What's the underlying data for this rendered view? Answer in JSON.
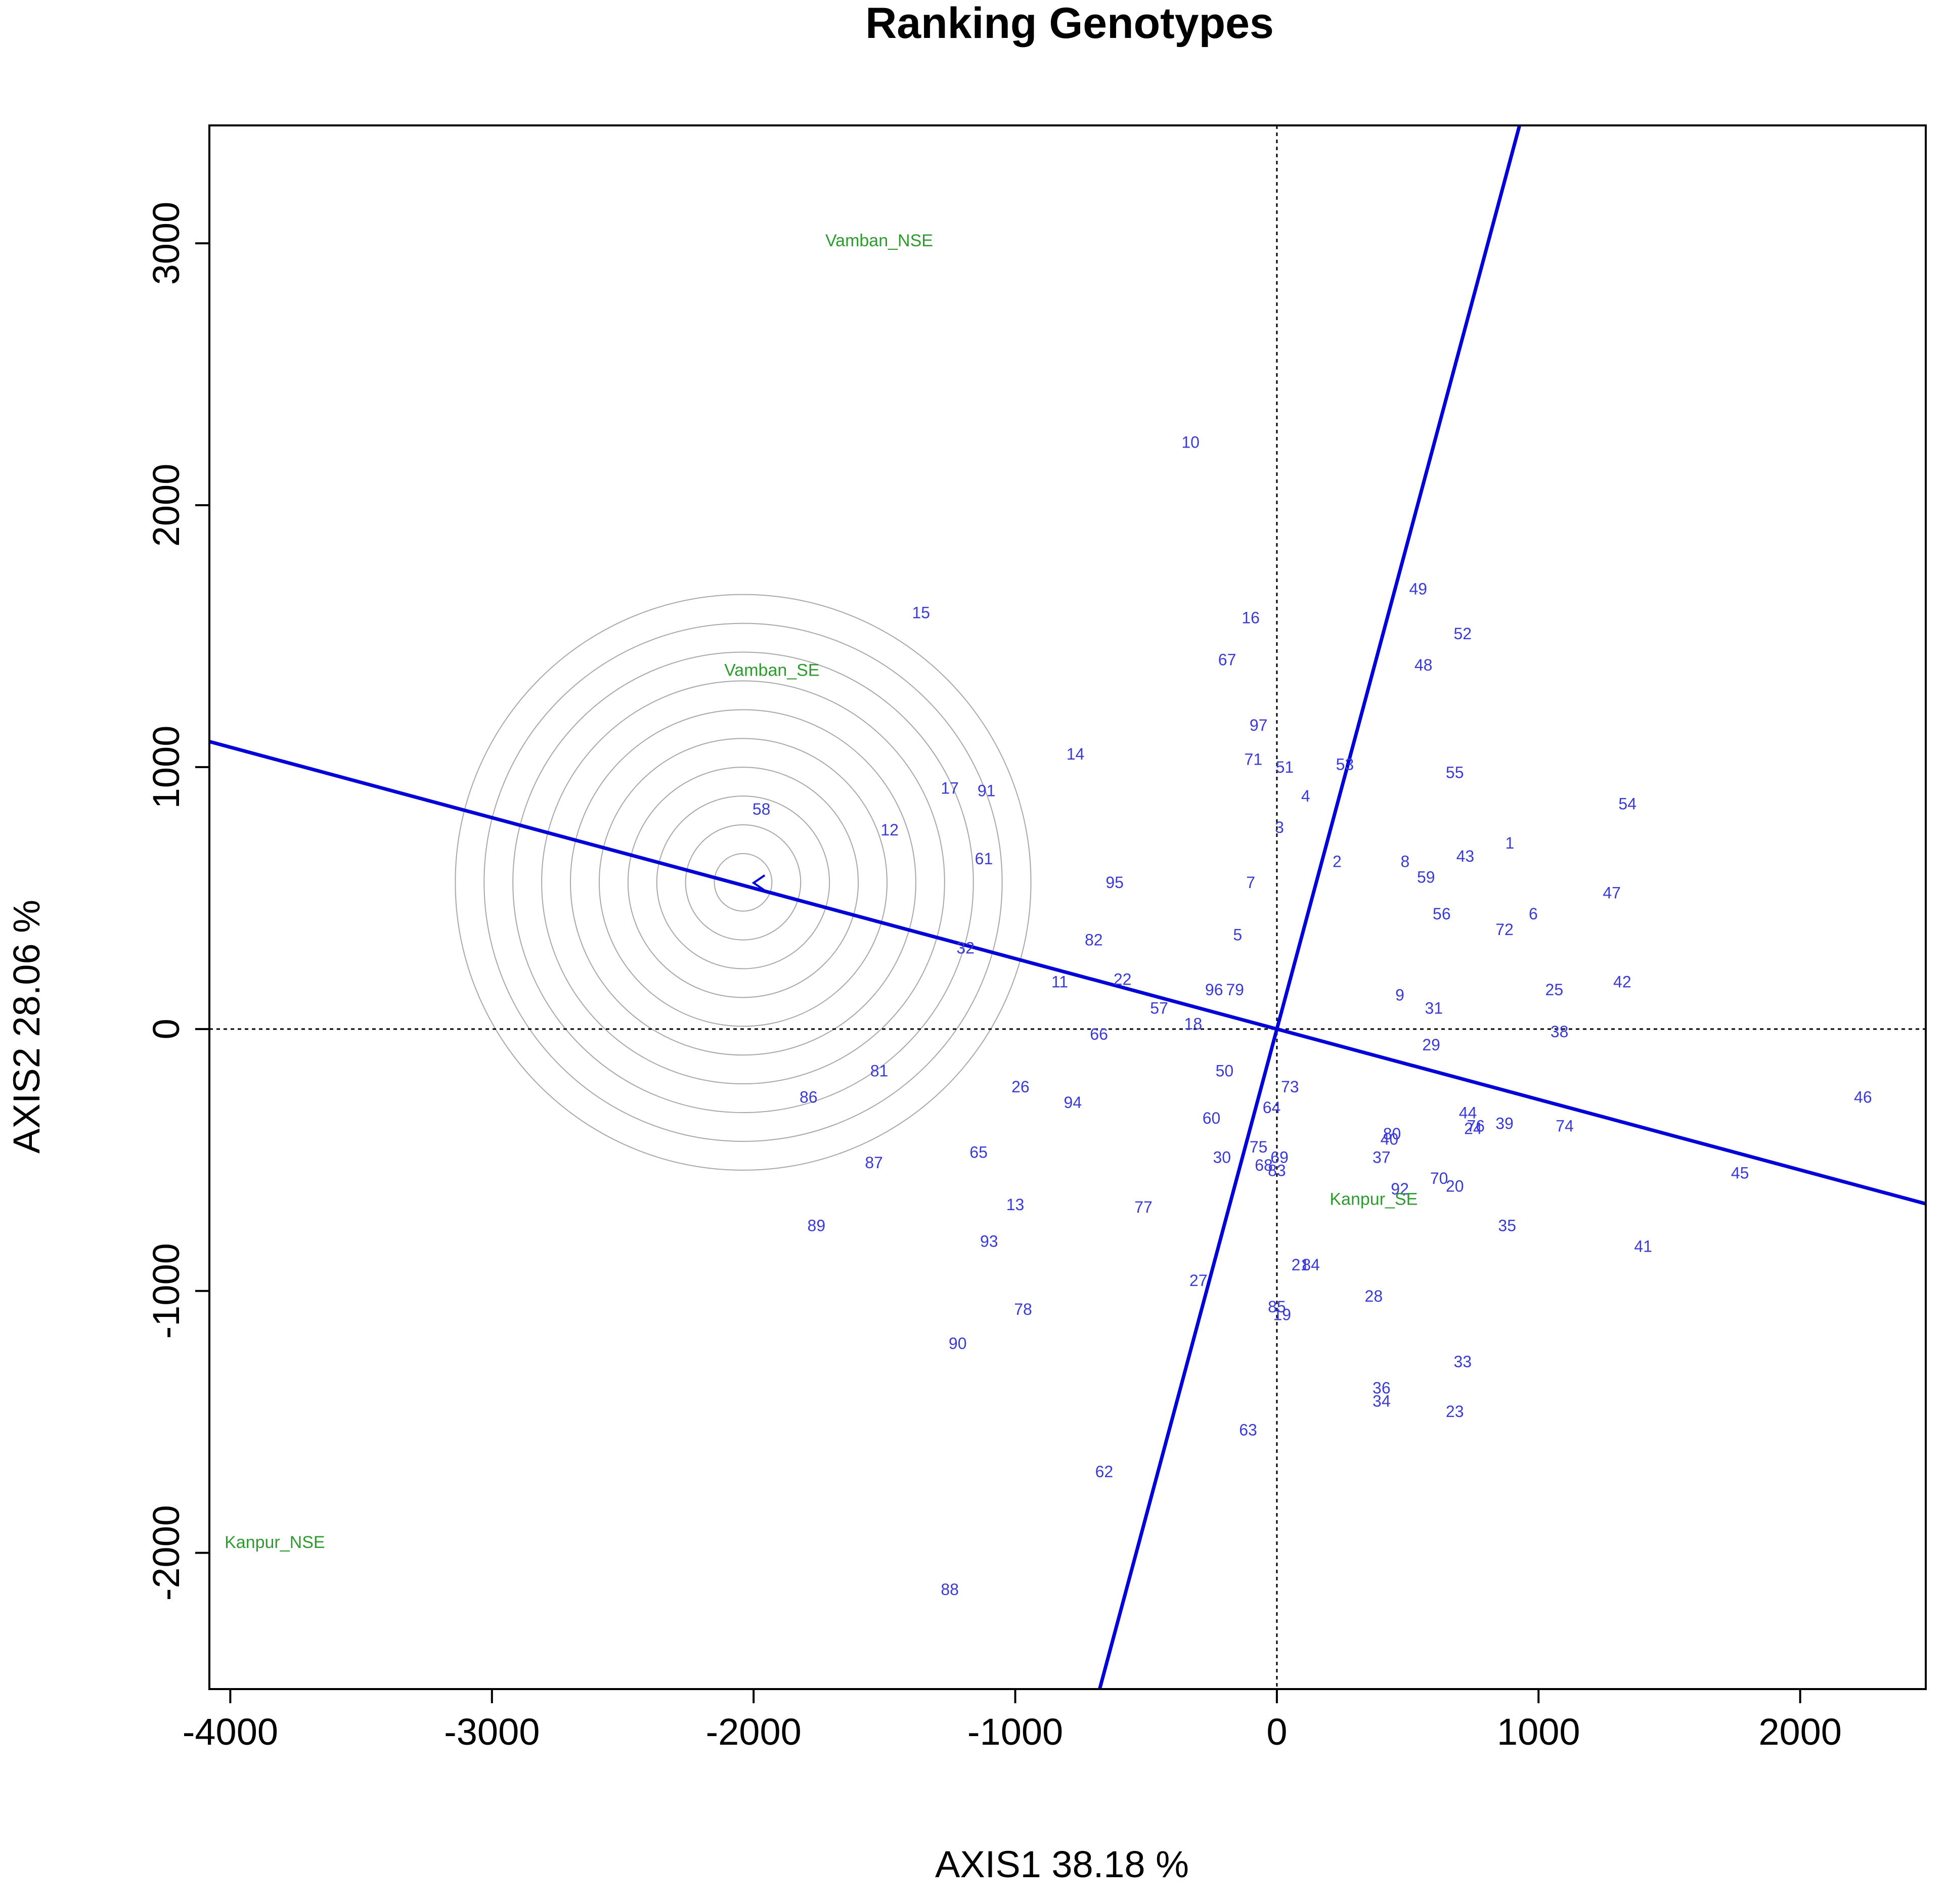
{
  "chart_data": {
    "type": "scatter",
    "title": "Ranking Genotypes",
    "xlabel": "AXIS1 38.18 %",
    "ylabel": "AXIS2 28.06 %",
    "xlim": [
      -4080,
      2480
    ],
    "ylim": [
      -2520,
      3450
    ],
    "x_ticks": [
      -4000,
      -3000,
      -2000,
      -1000,
      0,
      1000,
      2000
    ],
    "y_ticks": [
      -2000,
      -1000,
      0,
      1000,
      2000,
      3000
    ],
    "grid": false,
    "colors": {
      "genotype": "#3a3ad6",
      "environment": "#2e9b2e",
      "axis_line": "#0000d8",
      "circle": "#a8a8a8",
      "frame": "#000000"
    },
    "average_environment_point": {
      "x": -2000,
      "y": 560
    },
    "concentric_circles": {
      "center_x": -2040,
      "center_y": 560,
      "radius_step": 110,
      "count": 10
    },
    "ranking_axis_slope": -0.269,
    "perpendicular_axis_slope": 3.72,
    "environments": [
      {
        "label": "Vamban_NSE",
        "x": -1520,
        "y": 3010
      },
      {
        "label": "Vamban_SE",
        "x": -1930,
        "y": 1370
      },
      {
        "label": "Kanpur_SE",
        "x": 370,
        "y": -650
      },
      {
        "label": "Kanpur_NSE",
        "x": -3830,
        "y": -1960
      }
    ],
    "genotypes": [
      {
        "label": "1",
        "x": 890,
        "y": 710
      },
      {
        "label": "2",
        "x": 230,
        "y": 640
      },
      {
        "label": "3",
        "x": 10,
        "y": 770
      },
      {
        "label": "4",
        "x": 110,
        "y": 890
      },
      {
        "label": "5",
        "x": -150,
        "y": 360
      },
      {
        "label": "6",
        "x": 980,
        "y": 440
      },
      {
        "label": "7",
        "x": -100,
        "y": 560
      },
      {
        "label": "8",
        "x": 490,
        "y": 640
      },
      {
        "label": "9",
        "x": 470,
        "y": 130
      },
      {
        "label": "10",
        "x": -330,
        "y": 2240
      },
      {
        "label": "11",
        "x": -830,
        "y": 180
      },
      {
        "label": "12",
        "x": -1480,
        "y": 760
      },
      {
        "label": "13",
        "x": -1000,
        "y": -670
      },
      {
        "label": "14",
        "x": -770,
        "y": 1050
      },
      {
        "label": "15",
        "x": -1360,
        "y": 1590
      },
      {
        "label": "16",
        "x": -100,
        "y": 1570
      },
      {
        "label": "17",
        "x": -1250,
        "y": 920
      },
      {
        "label": "18",
        "x": -320,
        "y": 20
      },
      {
        "label": "19",
        "x": 20,
        "y": -1090
      },
      {
        "label": "20",
        "x": 680,
        "y": -600
      },
      {
        "label": "21",
        "x": 90,
        "y": -900
      },
      {
        "label": "22",
        "x": -590,
        "y": 190
      },
      {
        "label": "23",
        "x": 680,
        "y": -1460
      },
      {
        "label": "24",
        "x": 750,
        "y": -380
      },
      {
        "label": "25",
        "x": 1060,
        "y": 150
      },
      {
        "label": "26",
        "x": -980,
        "y": -220
      },
      {
        "label": "27",
        "x": -300,
        "y": -960
      },
      {
        "label": "28",
        "x": 370,
        "y": -1020
      },
      {
        "label": "29",
        "x": 590,
        "y": -60
      },
      {
        "label": "30",
        "x": -210,
        "y": -490
      },
      {
        "label": "31",
        "x": 600,
        "y": 80
      },
      {
        "label": "32",
        "x": -1190,
        "y": 310
      },
      {
        "label": "33",
        "x": 710,
        "y": -1270
      },
      {
        "label": "34",
        "x": 400,
        "y": -1420
      },
      {
        "label": "35",
        "x": 880,
        "y": -750
      },
      {
        "label": "36",
        "x": 400,
        "y": -1370
      },
      {
        "label": "37",
        "x": 400,
        "y": -490
      },
      {
        "label": "38",
        "x": 1080,
        "y": -10
      },
      {
        "label": "39",
        "x": 870,
        "y": -360
      },
      {
        "label": "40",
        "x": 430,
        "y": -420
      },
      {
        "label": "41",
        "x": 1400,
        "y": -830
      },
      {
        "label": "42",
        "x": 1320,
        "y": 180
      },
      {
        "label": "43",
        "x": 720,
        "y": 660
      },
      {
        "label": "44",
        "x": 730,
        "y": -320
      },
      {
        "label": "45",
        "x": 1770,
        "y": -550
      },
      {
        "label": "46",
        "x": 2240,
        "y": -260
      },
      {
        "label": "47",
        "x": 1280,
        "y": 520
      },
      {
        "label": "48",
        "x": 560,
        "y": 1390
      },
      {
        "label": "49",
        "x": 540,
        "y": 1680
      },
      {
        "label": "50",
        "x": -200,
        "y": -160
      },
      {
        "label": "51",
        "x": 30,
        "y": 1000
      },
      {
        "label": "52",
        "x": 710,
        "y": 1510
      },
      {
        "label": "53",
        "x": 260,
        "y": 1010
      },
      {
        "label": "54",
        "x": 1340,
        "y": 860
      },
      {
        "label": "55",
        "x": 680,
        "y": 980
      },
      {
        "label": "56",
        "x": 630,
        "y": 440
      },
      {
        "label": "57",
        "x": -450,
        "y": 80
      },
      {
        "label": "58",
        "x": -1970,
        "y": 840
      },
      {
        "label": "59",
        "x": 570,
        "y": 580
      },
      {
        "label": "60",
        "x": -250,
        "y": -340
      },
      {
        "label": "61",
        "x": -1120,
        "y": 650
      },
      {
        "label": "62",
        "x": -660,
        "y": -1690
      },
      {
        "label": "63",
        "x": -110,
        "y": -1530
      },
      {
        "label": "64",
        "x": -20,
        "y": -300
      },
      {
        "label": "65",
        "x": -1140,
        "y": -470
      },
      {
        "label": "66",
        "x": -680,
        "y": -20
      },
      {
        "label": "67",
        "x": -190,
        "y": 1410
      },
      {
        "label": "68",
        "x": -50,
        "y": -520
      },
      {
        "label": "69",
        "x": 10,
        "y": -490
      },
      {
        "label": "70",
        "x": 620,
        "y": -570
      },
      {
        "label": "71",
        "x": -90,
        "y": 1030
      },
      {
        "label": "72",
        "x": 870,
        "y": 380
      },
      {
        "label": "73",
        "x": 50,
        "y": -220
      },
      {
        "label": "74",
        "x": 1100,
        "y": -370
      },
      {
        "label": "75",
        "x": -70,
        "y": -450
      },
      {
        "label": "76",
        "x": 760,
        "y": -370
      },
      {
        "label": "77",
        "x": -510,
        "y": -680
      },
      {
        "label": "78",
        "x": -970,
        "y": -1070
      },
      {
        "label": "79",
        "x": -160,
        "y": 150
      },
      {
        "label": "80",
        "x": 440,
        "y": -400
      },
      {
        "label": "81",
        "x": -1520,
        "y": -160
      },
      {
        "label": "82",
        "x": -700,
        "y": 340
      },
      {
        "label": "83",
        "x": 0,
        "y": -540
      },
      {
        "label": "84",
        "x": 130,
        "y": -900
      },
      {
        "label": "85",
        "x": 0,
        "y": -1060
      },
      {
        "label": "86",
        "x": -1790,
        "y": -260
      },
      {
        "label": "87",
        "x": -1540,
        "y": -510
      },
      {
        "label": "88",
        "x": -1250,
        "y": -2140
      },
      {
        "label": "89",
        "x": -1760,
        "y": -750
      },
      {
        "label": "90",
        "x": -1220,
        "y": -1200
      },
      {
        "label": "91",
        "x": -1110,
        "y": 910
      },
      {
        "label": "92",
        "x": 470,
        "y": -610
      },
      {
        "label": "93",
        "x": -1100,
        "y": -810
      },
      {
        "label": "94",
        "x": -780,
        "y": -280
      },
      {
        "label": "95",
        "x": -620,
        "y": 560
      },
      {
        "label": "96",
        "x": -240,
        "y": 150
      },
      {
        "label": "97",
        "x": -70,
        "y": 1160
      }
    ]
  }
}
